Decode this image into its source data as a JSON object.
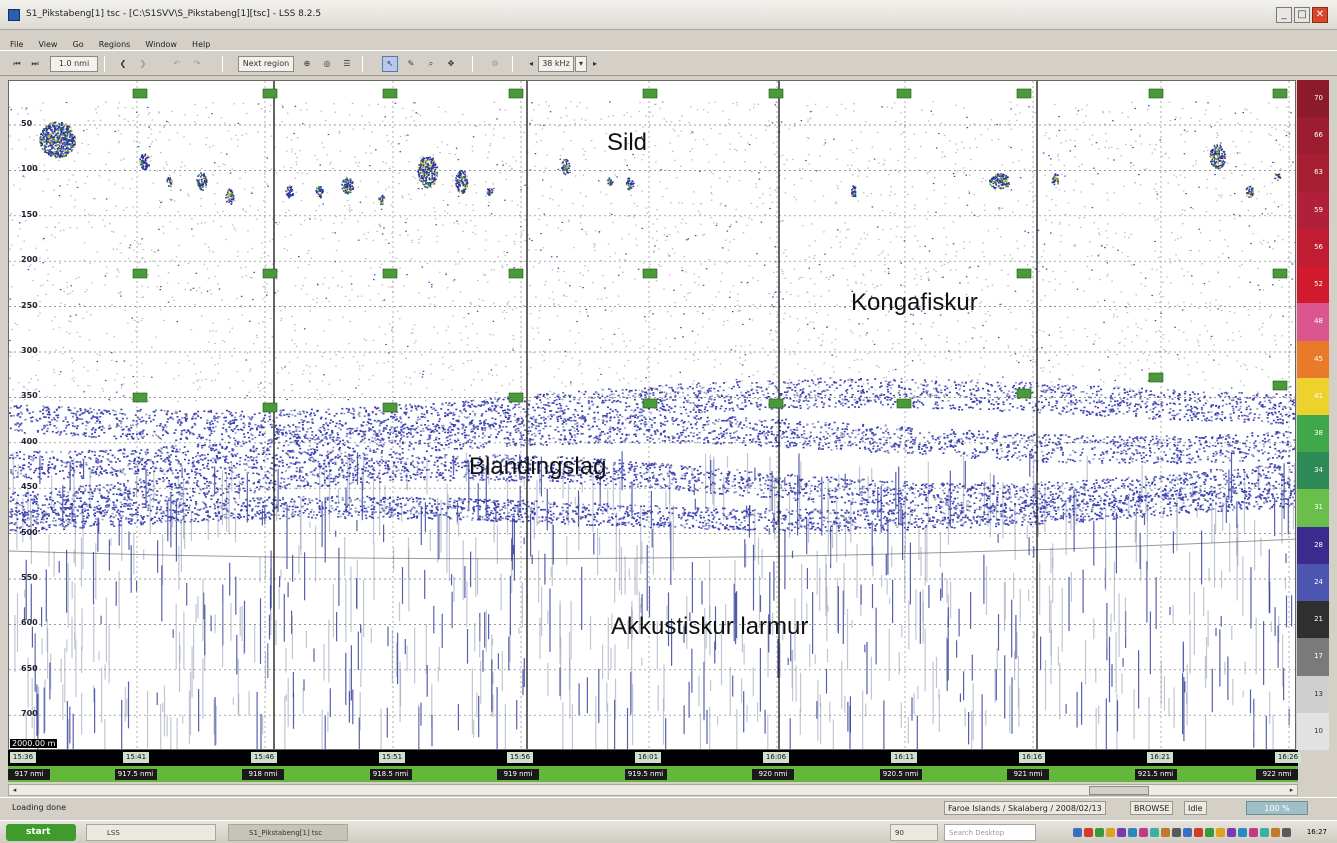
{
  "window": {
    "title": "S1_Pikstabeng[1] tsc - [C:\\S1SVV\\S_Pikstabeng[1][tsc] - LSS 8.2.5",
    "controls": [
      "_",
      "□",
      "✕"
    ]
  },
  "menu": [
    "File",
    "View",
    "Go",
    "Regions",
    "Window",
    "Help"
  ],
  "toolbar": {
    "scale_value": "1.0 nmi",
    "next_region_label": "Next region",
    "frequency_value": "38 kHz"
  },
  "depth_ticks": [
    "50",
    "100",
    "150",
    "200",
    "250",
    "300",
    "350",
    "400",
    "450",
    "500",
    "550",
    "600",
    "650",
    "700"
  ],
  "depth_readout": "2000.00 m",
  "annotations": {
    "herring": "Sild",
    "blue_whiting": "Kongafiskur",
    "mixed_layer": "Blandingslag",
    "acoustic_noise": "Akkustiskur larmur"
  },
  "color_scale": [
    {
      "label": "70",
      "color": "#8b1a2a"
    },
    {
      "label": "66",
      "color": "#9a1c2e"
    },
    {
      "label": "63",
      "color": "#a31f31"
    },
    {
      "label": "59",
      "color": "#b0203a"
    },
    {
      "label": "56",
      "color": "#c01d33"
    },
    {
      "label": "52",
      "color": "#d21a2e"
    },
    {
      "label": "48",
      "color": "#d9568f"
    },
    {
      "label": "45",
      "color": "#e87a2a"
    },
    {
      "label": "41",
      "color": "#ecd22a"
    },
    {
      "label": "38",
      "color": "#3fa84a"
    },
    {
      "label": "34",
      "color": "#2d8a56"
    },
    {
      "label": "31",
      "color": "#6abf4b"
    },
    {
      "label": "28",
      "color": "#3b2b8c"
    },
    {
      "label": "24",
      "color": "#4c56b0"
    },
    {
      "label": "21",
      "color": "#2f2f2f"
    },
    {
      "label": "17",
      "color": "#7a7a7a"
    },
    {
      "label": "13",
      "color": "#cfcfcf"
    },
    {
      "label": "10",
      "color": "#e2e2e2"
    }
  ],
  "time_ticks": [
    "15:41",
    "15:46",
    "15:51",
    "15:56",
    "16:01",
    "16:06",
    "16:11",
    "16:16",
    "16:21",
    "16:26"
  ],
  "time_start": "15:36",
  "distance_ticks": [
    "917 nmi",
    "917.5 nmi",
    "918 nmi",
    "918.5 nmi",
    "919 nmi",
    "919.5 nmi",
    "920 nmi",
    "920.5 nmi",
    "921 nmi",
    "921.5 nmi",
    "922 nmi"
  ],
  "status": {
    "left": "Loading done",
    "location": "Faroe Islands / Skalaberg / 2008/02/13",
    "mode": "BROWSE",
    "state": "Idle",
    "zoom": "100 %"
  },
  "taskbar": {
    "start_label": "start",
    "tasks": [
      "LSS",
      "S1_Pikstabeng[1] tsc"
    ],
    "page": "90",
    "search_placeholder": "Search Desktop",
    "clock": "16:27"
  }
}
